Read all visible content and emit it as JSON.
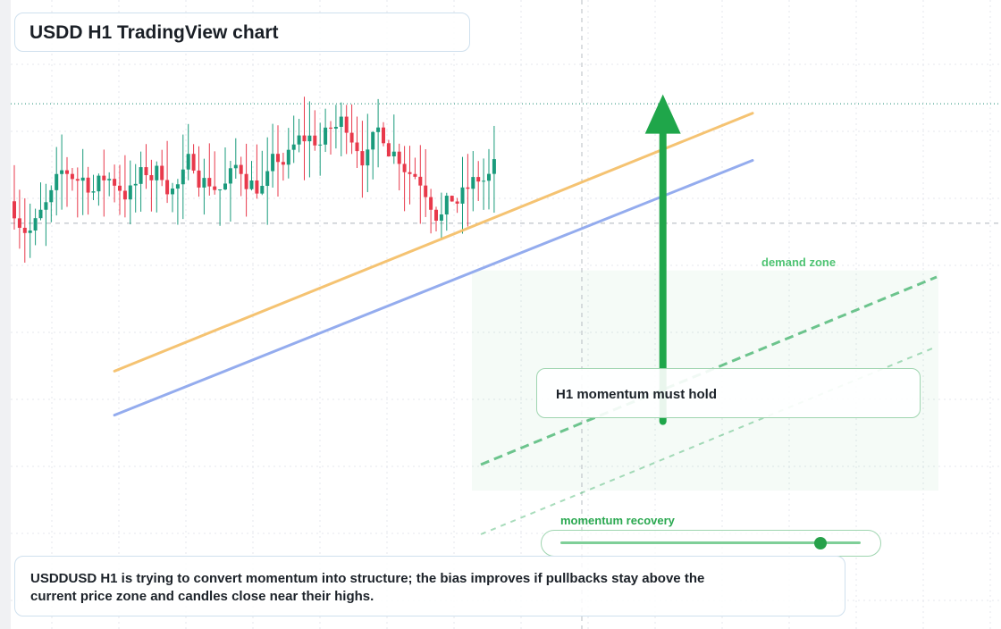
{
  "title": "USDD H1 TradingView chart",
  "callout": "H1 momentum must hold",
  "bias_text": "USDDUSD H1 is trying to convert momentum into structure; the bias improves if pullbacks stay above the current price zone and candles close near their highs.",
  "zone_label": "demand zone",
  "slider": {
    "label": "momentum recovery",
    "value": 0.9
  },
  "colors": {
    "bull": "#1a9b7c",
    "bear": "#e8394b",
    "trend_orange": "#f5c06b",
    "trend_blue": "#8fa8ee",
    "channel_green": "#3fb26a",
    "arrow": "#1fa64a"
  },
  "chart_data": {
    "type": "candlestick",
    "symbol": "USDDUSD",
    "timeframe": "H1",
    "price_range": [
      0,
      100
    ],
    "bar_count": 92,
    "grid": true,
    "price_line": 83.5,
    "reference_line": 64.5,
    "trendlines": [
      {
        "name": "",
        "from": [
          19,
          41
        ],
        "to": [
          140,
          82
        ],
        "color": "orange"
      },
      {
        "name": "",
        "from": [
          19,
          34
        ],
        "to": [
          140,
          74.5
        ],
        "color": "blue"
      }
    ],
    "projection_arrow": {
      "from_value": 33,
      "to_value": 85,
      "at_bar": 123
    },
    "generator": {
      "seed": 7,
      "start": 68,
      "drift": 0.15,
      "volatility": 2.6
    }
  }
}
